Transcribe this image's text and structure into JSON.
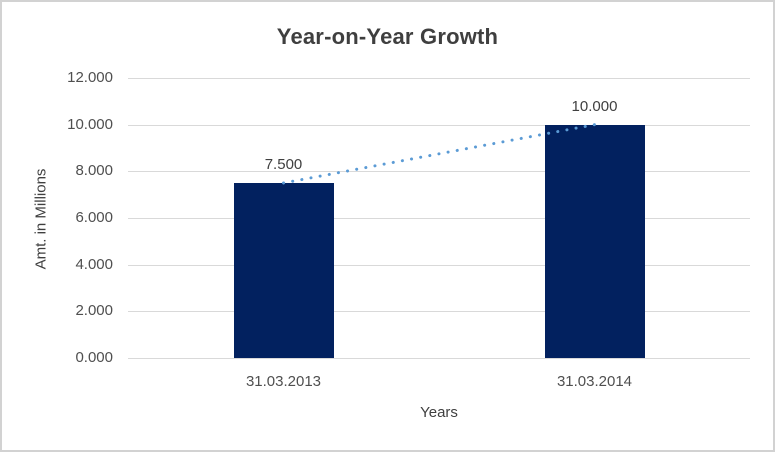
{
  "chart_data": {
    "type": "bar",
    "title": "Year-on-Year Growth",
    "categories": [
      "31.03.2013",
      "31.03.2014"
    ],
    "values": [
      7.5,
      10
    ],
    "data_labels": [
      "7.500",
      "10.000"
    ],
    "xlabel": "Years",
    "ylabel": "Amt. in Millions",
    "ylim": [
      0,
      12
    ],
    "ytick_step": 2,
    "yticks": [
      "12.000",
      "10.000",
      "8.000",
      "6.000",
      "4.000",
      "2.000",
      "0.000"
    ],
    "grid": true,
    "legend": "none",
    "trendline": {
      "type": "linear",
      "style": "dotted",
      "connects": [
        7.5,
        10
      ]
    },
    "colors": {
      "bar": "#02215f",
      "gridline": "#d9d9d9",
      "axis_line": "#d9d9d9",
      "trendline": "#5b9bd5",
      "title_text": "#3f3f3f",
      "tick_text": "#4f4f4f"
    }
  }
}
